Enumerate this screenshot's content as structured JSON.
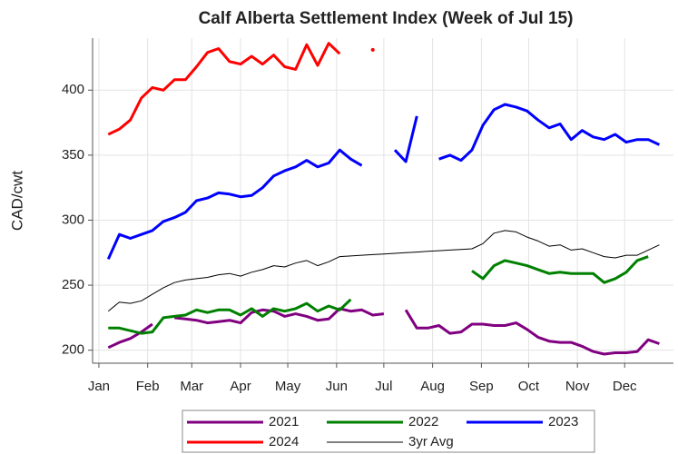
{
  "chart_data": {
    "type": "line",
    "title": "Calf Alberta Settlement Index (Week of Jul 15)",
    "y_label": "CAD/cwt",
    "x": [
      7,
      14,
      21,
      28,
      35,
      42,
      49,
      56,
      63,
      70,
      77,
      84,
      91,
      98,
      105,
      112,
      119,
      126,
      133,
      140,
      147,
      154,
      161,
      168,
      175,
      182,
      189,
      196,
      203,
      210,
      217,
      224,
      231,
      238,
      245,
      252,
      259,
      266,
      273,
      280,
      287,
      294,
      301,
      308,
      315,
      322,
      329,
      336,
      343,
      350,
      357,
      364
    ],
    "xlim": [
      -3,
      366
    ],
    "xticks": [
      {
        "value": 1,
        "label": "Jan"
      },
      {
        "value": 32,
        "label": "Feb"
      },
      {
        "value": 60,
        "label": "Mar"
      },
      {
        "value": 91,
        "label": "Apr"
      },
      {
        "value": 121,
        "label": "May"
      },
      {
        "value": 152,
        "label": "Jun"
      },
      {
        "value": 182,
        "label": "Jul"
      },
      {
        "value": 213,
        "label": "Aug"
      },
      {
        "value": 244,
        "label": "Sep"
      },
      {
        "value": 274,
        "label": "Oct"
      },
      {
        "value": 305,
        "label": "Nov"
      },
      {
        "value": 335,
        "label": "Dec"
      }
    ],
    "ylim": [
      190,
      440
    ],
    "yticks": [
      200,
      250,
      300,
      350,
      400
    ],
    "grid": true,
    "legend": "bottom",
    "series": [
      {
        "name": "2021",
        "color": "#800080",
        "line_width": 3,
        "values": [
          202,
          206,
          209,
          214,
          220,
          null,
          225,
          224,
          223,
          221,
          222,
          223,
          221,
          229,
          231,
          230,
          226,
          228,
          226,
          223,
          224,
          232,
          230,
          231,
          227,
          228,
          null,
          231,
          217,
          217,
          219,
          213,
          214,
          220,
          220,
          219,
          219,
          221,
          216,
          210,
          207,
          206,
          206,
          203,
          199,
          197,
          198,
          198,
          199,
          208,
          205,
          null
        ]
      },
      {
        "name": "2022",
        "color": "#008000",
        "line_width": 3,
        "values": [
          217,
          217,
          215,
          213,
          214,
          225,
          226,
          227,
          231,
          229,
          231,
          231,
          227,
          232,
          226,
          232,
          230,
          232,
          236,
          230,
          234,
          231,
          239,
          null,
          null,
          null,
          null,
          null,
          null,
          null,
          null,
          null,
          null,
          261,
          255,
          265,
          269,
          267,
          265,
          262,
          259,
          260,
          259,
          259,
          259,
          252,
          255,
          260,
          269,
          272,
          null,
          null
        ]
      },
      {
        "name": "2023",
        "color": "#0000ff",
        "line_width": 3,
        "values": [
          270,
          289,
          286,
          289,
          292,
          299,
          302,
          306,
          315,
          317,
          321,
          320,
          318,
          319,
          325,
          334,
          338,
          341,
          346,
          341,
          344,
          354,
          347,
          342,
          null,
          null,
          354,
          345,
          380,
          null,
          347,
          350,
          346,
          354,
          373,
          385,
          389,
          387,
          384,
          377,
          371,
          374,
          362,
          369,
          364,
          362,
          366,
          360,
          362,
          362,
          358,
          null
        ]
      },
      {
        "name": "2024",
        "color": "#ff0000",
        "line_width": 3,
        "values": [
          366,
          370,
          377,
          394,
          402,
          400,
          408,
          408,
          418,
          429,
          432,
          422,
          420,
          426,
          420,
          427,
          418,
          416,
          435,
          419,
          436,
          428,
          null,
          null,
          431,
          null,
          null,
          null,
          null,
          null,
          null,
          null,
          null,
          null,
          null,
          null,
          null,
          null,
          null,
          null,
          null,
          null,
          null,
          null,
          null,
          null,
          null,
          null,
          null,
          null,
          null,
          null
        ]
      },
      {
        "name": "3yr Avg",
        "color": "#000000",
        "line_width": 1,
        "values": [
          230,
          237,
          236,
          238,
          243,
          248,
          252,
          254,
          255,
          256,
          258,
          259,
          257,
          260,
          262,
          265,
          264,
          267,
          269,
          265,
          268,
          272,
          272.5,
          273,
          273.5,
          274,
          274.5,
          275,
          275.5,
          276,
          276.5,
          277,
          277.5,
          278,
          282,
          290,
          292,
          291,
          287,
          284,
          280,
          281,
          277,
          278,
          275,
          272,
          271,
          273,
          273,
          277,
          281,
          null
        ]
      }
    ]
  }
}
